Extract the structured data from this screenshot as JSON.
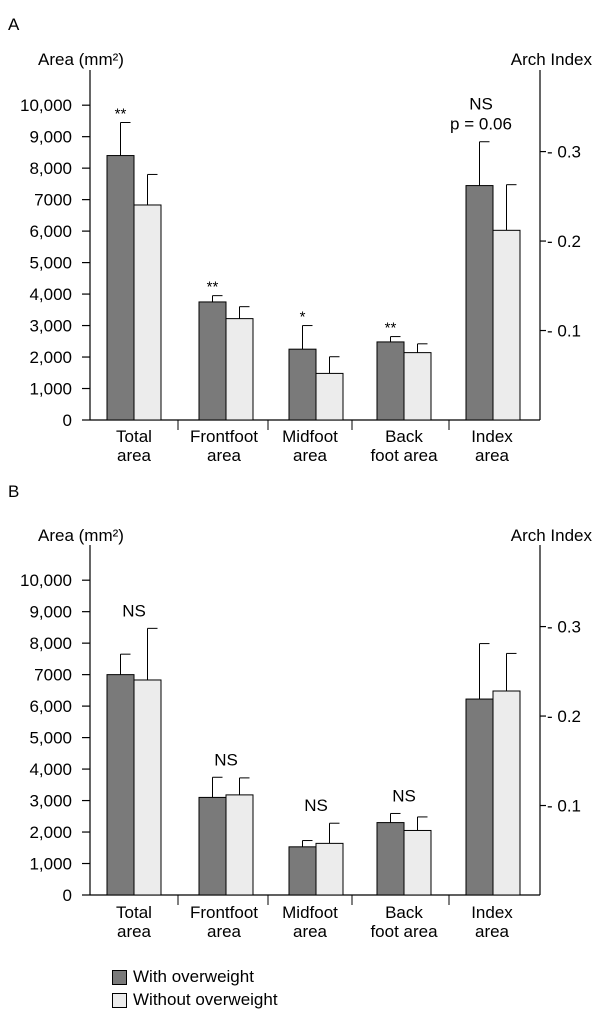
{
  "colors": {
    "with_overweight": "#7a7a7a",
    "without_overweight": "#ececec"
  },
  "legend": {
    "with_overweight": "With overweight",
    "without_overweight": "Without overweight"
  },
  "chart_data": [
    {
      "type": "bar",
      "panel_label": "A",
      "ylabel": "Area (mm²)",
      "ylabel_right": "Arch Index",
      "ylim": [
        0,
        10800
      ],
      "yticks": [
        "0",
        "1,000",
        "2,000",
        "3,000",
        "4,000",
        "5,000",
        "6,000",
        "7000",
        "8,000",
        "9,000",
        "10,000"
      ],
      "right_ylim": [
        0,
        0.38
      ],
      "right_yticks": [
        "0.1",
        "0.2",
        "0.3"
      ],
      "categories": [
        [
          "Total",
          "area"
        ],
        [
          "Frontfoot",
          "area"
        ],
        [
          "Midfoot",
          "area"
        ],
        [
          "Back",
          "foot area"
        ],
        [
          "Index",
          "area"
        ]
      ],
      "axis": [
        "left",
        "left",
        "left",
        "left",
        "right"
      ],
      "series": [
        {
          "name": "With overweight",
          "values": [
            8400,
            3750,
            2250,
            2480,
            0.262
          ],
          "errors": [
            1050,
            200,
            750,
            170,
            0.049
          ]
        },
        {
          "name": "Without overweight",
          "values": [
            6830,
            3220,
            1480,
            2140,
            0.212
          ],
          "errors": [
            970,
            380,
            530,
            280,
            0.051
          ]
        }
      ],
      "annotations": [
        "**",
        "**",
        "*",
        "**",
        "NS\np = 0.06"
      ]
    },
    {
      "type": "bar",
      "panel_label": "B",
      "ylabel": "Area (mm²)",
      "ylabel_right": "Arch Index",
      "ylim": [
        0,
        10800
      ],
      "yticks": [
        "0",
        "1,000",
        "2,000",
        "3,000",
        "4,000",
        "5,000",
        "6,000",
        "7000",
        "8,000",
        "9,000",
        "10,000"
      ],
      "right_ylim": [
        0,
        0.38
      ],
      "right_yticks": [
        "0.1",
        "0.2",
        "0.3"
      ],
      "categories": [
        [
          "Total",
          "area"
        ],
        [
          "Frontfoot",
          "area"
        ],
        [
          "Midfoot",
          "area"
        ],
        [
          "Back",
          "foot area"
        ],
        [
          "Index",
          "area"
        ]
      ],
      "axis": [
        "left",
        "left",
        "left",
        "left",
        "right"
      ],
      "series": [
        {
          "name": "With overweight",
          "values": [
            7000,
            3100,
            1530,
            2300,
            0.219
          ],
          "errors": [
            650,
            640,
            200,
            290,
            0.062
          ]
        },
        {
          "name": "Without overweight",
          "values": [
            6830,
            3180,
            1640,
            2050,
            0.228
          ],
          "errors": [
            1640,
            540,
            640,
            430,
            0.042
          ]
        }
      ],
      "annotations": [
        "NS",
        "NS",
        "NS",
        "NS",
        ""
      ]
    }
  ]
}
